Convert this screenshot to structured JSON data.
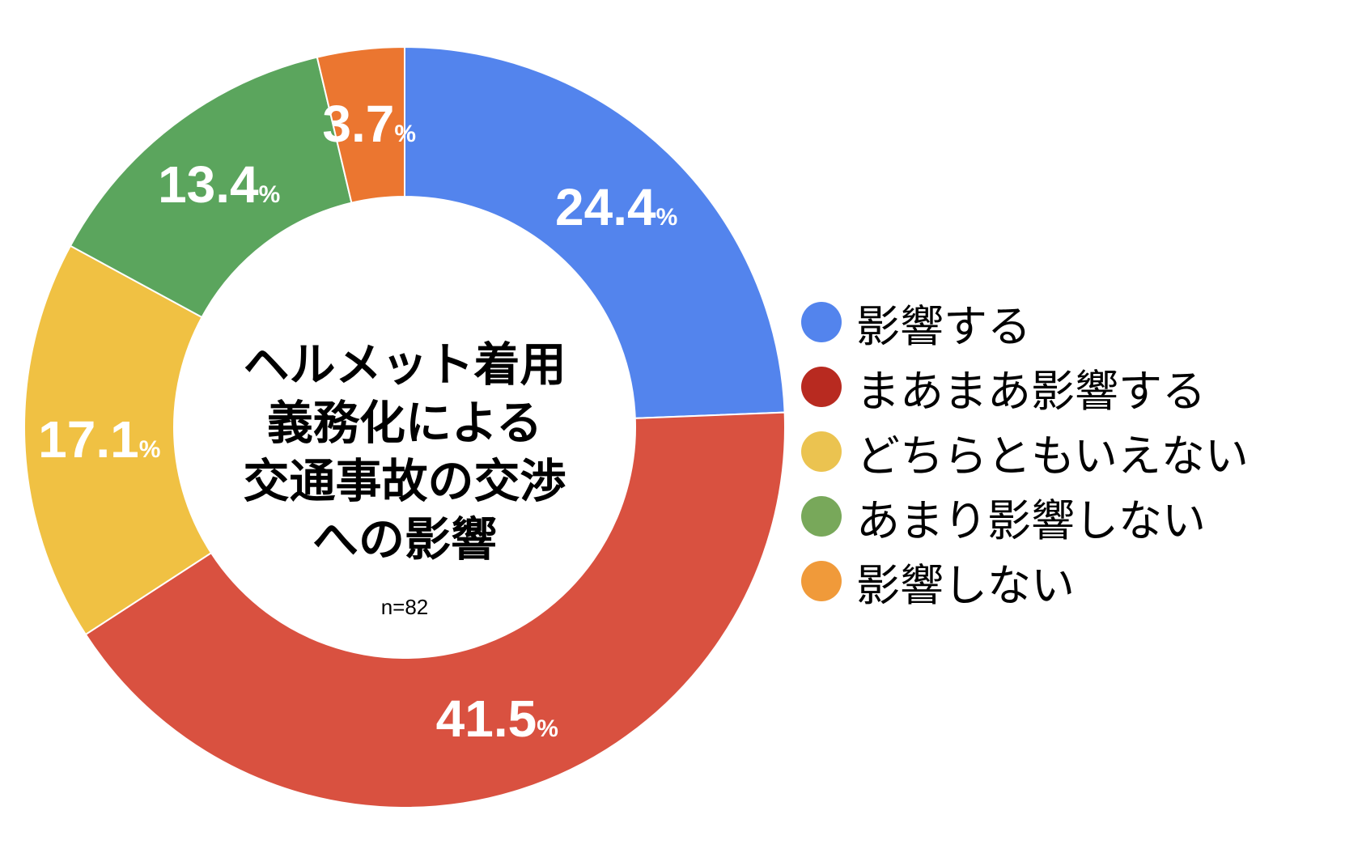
{
  "chart_data": {
    "type": "pie",
    "title": [
      "ヘルメット着用",
      "義務化による",
      "交通事故の交渉",
      "への影響"
    ],
    "sample_size": "n=82",
    "unit": "%",
    "categories": [
      "影響する",
      "まあまあ影響する",
      "どちらともいえない",
      "あまり影響しない",
      "影響しない"
    ],
    "values": [
      24.4,
      41.5,
      17.1,
      13.4,
      3.7
    ],
    "value_labels": [
      "24.4",
      "41.5",
      "17.1",
      "13.4",
      "3.7"
    ],
    "slice_colors": [
      "#5384ED",
      "#D95140",
      "#F0C143",
      "#5BA55D",
      "#EB7630"
    ],
    "legend_colors": [
      "#5384ED",
      "#B82A20",
      "#EBC350",
      "#78A85A",
      "#F09A3A"
    ],
    "legend_position": "right",
    "donut": true
  }
}
